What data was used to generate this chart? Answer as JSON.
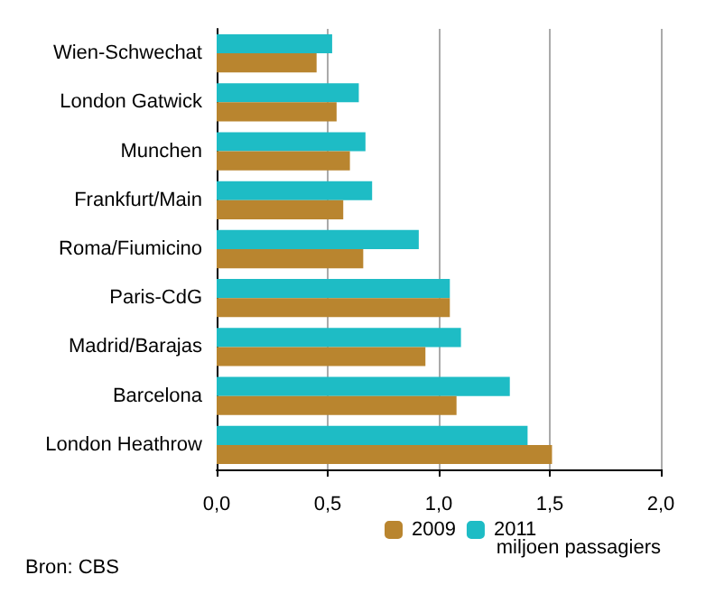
{
  "chart_data": {
    "type": "bar",
    "orientation": "horizontal",
    "categories": [
      "Wien-Schwechat",
      "London Gatwick",
      "Munchen",
      "Frankfurt/Main",
      "Roma/Fiumicino",
      "Paris-CdG",
      "Madrid/Barajas",
      "Barcelona",
      "London Heathrow"
    ],
    "series": [
      {
        "name": "2009",
        "color": "#b9852f",
        "values": [
          0.45,
          0.54,
          0.6,
          0.57,
          0.66,
          1.05,
          0.94,
          1.08,
          1.51
        ]
      },
      {
        "name": "2011",
        "color": "#1ebcc5",
        "values": [
          0.52,
          0.64,
          0.67,
          0.7,
          0.91,
          1.05,
          1.1,
          1.32,
          1.4
        ]
      }
    ],
    "xlim": [
      0,
      2
    ],
    "xticks": [
      {
        "value": 0,
        "label": "0,0"
      },
      {
        "value": 0.5,
        "label": "0,5"
      },
      {
        "value": 1,
        "label": "1,0"
      },
      {
        "value": 1.5,
        "label": "1,5"
      },
      {
        "value": 2,
        "label": "2,0"
      }
    ],
    "xlabel": "miljoen passagiers",
    "grid": "x",
    "legend": "bottom",
    "annotations": [
      "Bron: CBS"
    ]
  }
}
